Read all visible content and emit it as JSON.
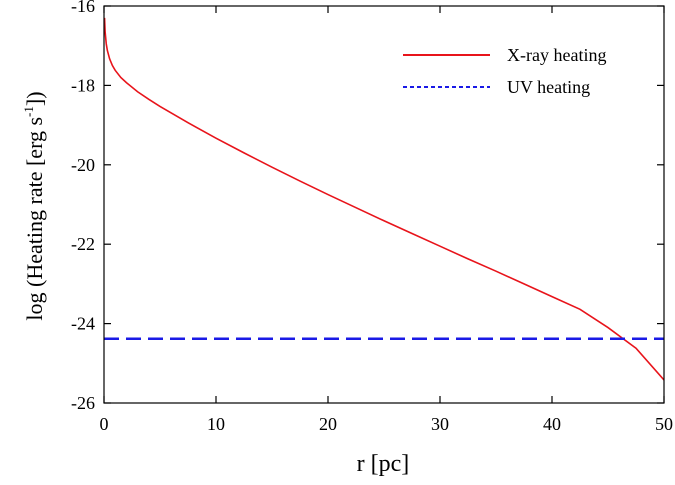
{
  "chart_data": {
    "type": "line",
    "title": "",
    "xlabel": "r [pc]",
    "ylabel_parts": {
      "before": "log (Heating rate [erg s",
      "superscript": "-1",
      "after": "])"
    },
    "xlim": [
      0,
      50
    ],
    "ylim": [
      -26,
      -16
    ],
    "xticks": [
      0,
      10,
      20,
      30,
      40,
      50
    ],
    "yticks": [
      -26,
      -24,
      -22,
      -20,
      -18,
      -16
    ],
    "grid": false,
    "legend_position": "top-right",
    "series": [
      {
        "name": "X-ray heating",
        "color": "#e8141b",
        "style": "solid",
        "x": [
          0.05,
          0.1,
          0.2,
          0.3,
          0.5,
          0.75,
          1,
          1.5,
          2,
          3,
          4,
          5,
          7.5,
          10,
          12.5,
          15,
          17.5,
          20,
          22.5,
          25,
          27.5,
          30,
          32.5,
          35,
          37.5,
          40,
          42.5,
          45,
          47.5,
          50
        ],
        "y": [
          -16.3,
          -16.65,
          -16.95,
          -17.12,
          -17.33,
          -17.5,
          -17.62,
          -17.8,
          -17.93,
          -18.16,
          -18.35,
          -18.53,
          -18.94,
          -19.33,
          -19.7,
          -20.06,
          -20.41,
          -20.75,
          -21.08,
          -21.41,
          -21.73,
          -22.05,
          -22.37,
          -22.68,
          -23.0,
          -23.32,
          -23.64,
          -24.1,
          -24.62,
          -25.42
        ]
      },
      {
        "name": "UV heating",
        "color": "#1a1ae6",
        "style": "dashed",
        "x": [
          0,
          50
        ],
        "y": [
          -24.38,
          -24.38
        ]
      }
    ]
  }
}
